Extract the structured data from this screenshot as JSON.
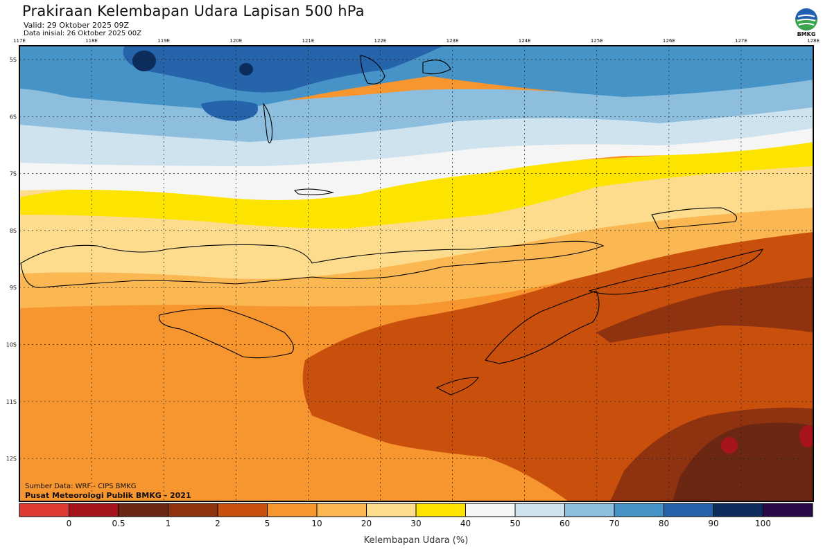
{
  "header": {
    "title": "Prakiraan Kelembapan Udara Lapisan 500 hPa",
    "valid": "Valid: 29 Oktober 2025 09Z",
    "initial": "Data inisial: 26 Oktober 2025 00Z",
    "logo_text": "BMKG"
  },
  "map": {
    "longitude_ticks": [
      "117E",
      "118E",
      "119E",
      "120E",
      "121E",
      "122E",
      "123E",
      "124E",
      "125E",
      "126E",
      "127E",
      "128E"
    ],
    "latitude_ticks": [
      "5S",
      "6S",
      "7S",
      "8S",
      "9S",
      "10S",
      "11S",
      "12S"
    ]
  },
  "colorbar": {
    "title": "Kelembapan Udara (%)",
    "labels": [
      "0",
      "0.5",
      "1",
      "2",
      "5",
      "10",
      "20",
      "30",
      "40",
      "50",
      "60",
      "70",
      "80",
      "90",
      "100"
    ],
    "colors": [
      "#e03a35",
      "#a8141b",
      "#6b2712",
      "#8f3210",
      "#c94f0c",
      "#f7952f",
      "#fbb852",
      "#fddc8e",
      "#fde400",
      "#f5f5f5",
      "#cfe3ef",
      "#8dbede",
      "#4593c7",
      "#2563ab",
      "#0c2c5c",
      "#2b0a4a"
    ]
  },
  "footer": {
    "source": "Sumber Data: WRF - CIPS BMKG",
    "center": "Pusat Meteorologi Publik BMKG - 2021"
  }
}
